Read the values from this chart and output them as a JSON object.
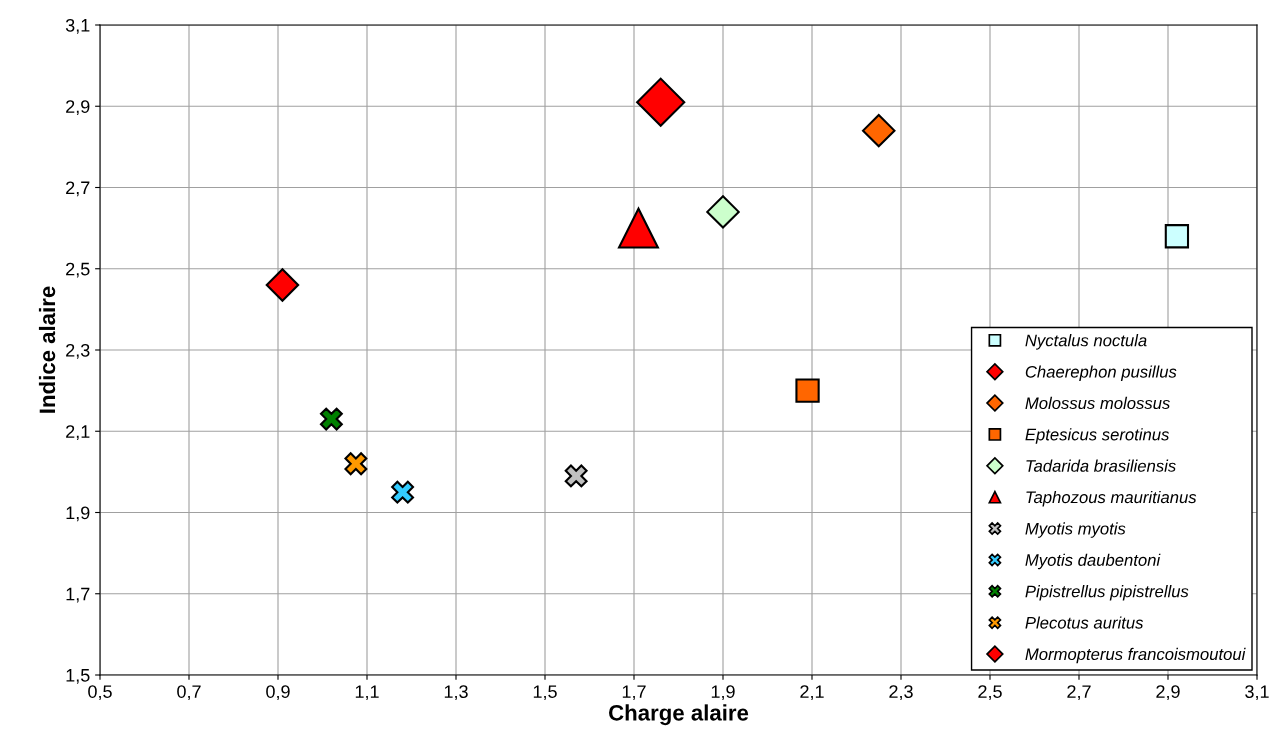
{
  "chart_data": {
    "type": "scatter",
    "xlabel": "Charge alaire",
    "ylabel": "Indice alaire",
    "xlim": [
      0.5,
      3.1
    ],
    "ylim": [
      1.5,
      3.1
    ],
    "xticks": [
      {
        "value": 0.5,
        "label": "0,5"
      },
      {
        "value": 0.7,
        "label": "0,7"
      },
      {
        "value": 0.9,
        "label": "0,9"
      },
      {
        "value": 1.1,
        "label": "1,1"
      },
      {
        "value": 1.3,
        "label": "1,3"
      },
      {
        "value": 1.5,
        "label": "1,5"
      },
      {
        "value": 1.7,
        "label": "1,7"
      },
      {
        "value": 1.9,
        "label": "1,9"
      },
      {
        "value": 2.1,
        "label": "2,1"
      },
      {
        "value": 2.3,
        "label": "2,3"
      },
      {
        "value": 2.5,
        "label": "2,5"
      },
      {
        "value": 2.7,
        "label": "2,7"
      },
      {
        "value": 2.9,
        "label": "2,9"
      },
      {
        "value": 3.1,
        "label": "3,1"
      }
    ],
    "yticks": [
      {
        "value": 1.5,
        "label": "1,5"
      },
      {
        "value": 1.7,
        "label": "1,7"
      },
      {
        "value": 1.9,
        "label": "1,9"
      },
      {
        "value": 2.1,
        "label": "2,1"
      },
      {
        "value": 2.3,
        "label": "2,3"
      },
      {
        "value": 2.5,
        "label": "2,5"
      },
      {
        "value": 2.7,
        "label": "2,7"
      },
      {
        "value": 2.9,
        "label": "2,9"
      },
      {
        "value": 3.1,
        "label": "3,1"
      }
    ],
    "grid": true,
    "legend": "bottom right",
    "series": [
      {
        "name": "Nyctalus noctula",
        "color": "#ccffff",
        "marker": "square",
        "x": [
          2.92
        ],
        "values": [
          2.58
        ]
      },
      {
        "name": "Chaerephon pusillus",
        "color": "#ff0000",
        "marker": "diamond",
        "x": [
          1.76
        ],
        "values": [
          2.91
        ]
      },
      {
        "name": "Molossus molossus",
        "color": "#ff6600",
        "marker": "diamond",
        "x": [
          2.25
        ],
        "values": [
          2.84
        ]
      },
      {
        "name": "Eptesicus serotinus",
        "color": "#ff6600",
        "marker": "square",
        "x": [
          2.09
        ],
        "values": [
          2.2
        ]
      },
      {
        "name": "Tadarida brasiliensis",
        "color": "#ccffcc",
        "marker": "diamond",
        "x": [
          1.9
        ],
        "values": [
          2.64
        ]
      },
      {
        "name": "Taphozous mauritianus",
        "color": "#ff0000",
        "marker": "triangle",
        "x": [
          1.71
        ],
        "values": [
          2.6
        ]
      },
      {
        "name": "Myotis myotis",
        "color": "#c0c0c0",
        "marker": "cross",
        "x": [
          1.57
        ],
        "values": [
          1.99
        ]
      },
      {
        "name": "Myotis daubentoni",
        "color": "#33ccff",
        "marker": "cross",
        "x": [
          1.18
        ],
        "values": [
          1.95
        ]
      },
      {
        "name": "Pipistrellus pipistrellus",
        "color": "#008000",
        "marker": "cross",
        "x": [
          1.02
        ],
        "values": [
          2.13
        ]
      },
      {
        "name": "Plecotus auritus",
        "color": "#ff9900",
        "marker": "cross",
        "x": [
          1.075
        ],
        "values": [
          2.02
        ]
      },
      {
        "name": "Mormopterus francoismoutoui",
        "color": "#ff0000",
        "marker": "diamond",
        "x": [
          0.91
        ],
        "values": [
          2.46
        ]
      }
    ]
  }
}
